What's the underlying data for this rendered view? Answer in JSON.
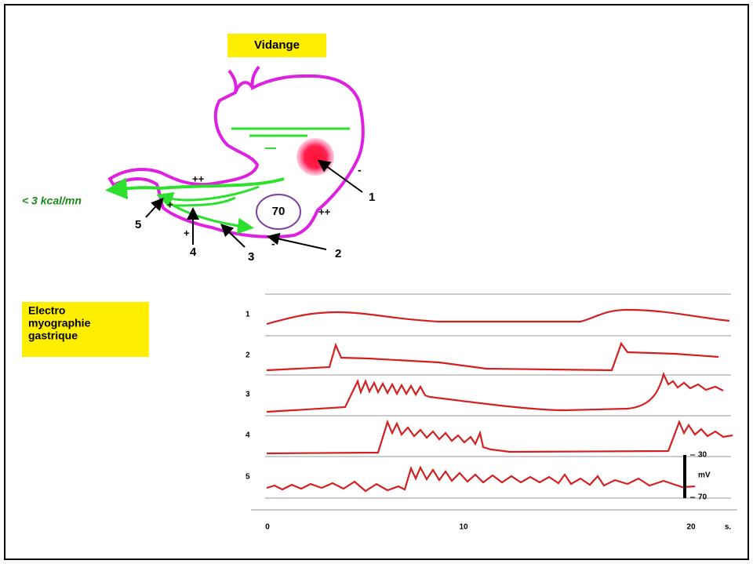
{
  "title": "Vidange",
  "flow_label": "< 3 kcal/mn",
  "stomach": {
    "pressure": 70,
    "plus_marks": [
      "++",
      "++",
      "+",
      "+"
    ],
    "minus_marks": [
      "-",
      "-"
    ],
    "arrow_labels": [
      1,
      2,
      3,
      4,
      5
    ]
  },
  "emg": {
    "title_lines": [
      "Electro",
      "myographie",
      "gastrique"
    ],
    "trace_labels": [
      1,
      2,
      3,
      4,
      5
    ],
    "x_ticks": [
      0,
      10,
      20
    ],
    "x_unit": "s.",
    "scale_top": 30,
    "scale_unit": "mV",
    "scale_bottom": 70
  }
}
